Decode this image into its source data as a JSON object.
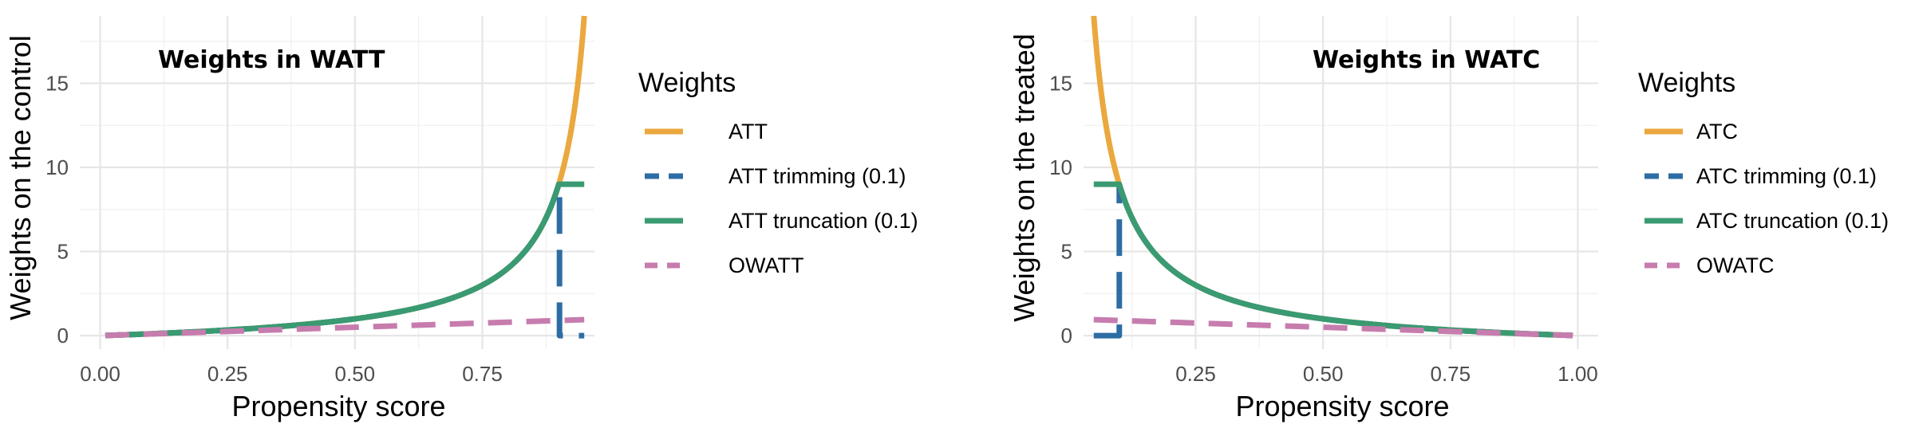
{
  "chart_data": [
    {
      "type": "line",
      "title": "Weights in WATT",
      "xlabel": "Propensity score",
      "ylabel": "Weights on the control",
      "xlim": [
        -0.04,
        0.97
      ],
      "ylim": [
        -0.8,
        19
      ],
      "x_ticks": [
        0.0,
        0.25,
        0.5,
        0.75
      ],
      "x_tick_labels": [
        "0.00",
        "0.25",
        "0.50",
        "0.75"
      ],
      "y_ticks": [
        0,
        5,
        10,
        15
      ],
      "y_tick_labels": [
        "0",
        "5",
        "10",
        "15"
      ],
      "grid": true,
      "legend": {
        "title": "Weights",
        "entries": [
          "ATT",
          "ATT trimming (0.1)",
          "ATT truncation (0.1)",
          "OWATT"
        ]
      },
      "series": [
        {
          "name": "ATT",
          "color": "#EBA83E",
          "dash": "solid",
          "formula": "e/(1-e)",
          "x_range": [
            0.01,
            0.95
          ]
        },
        {
          "name": "ATT trimming (0.1)",
          "color": "#2E6DA4",
          "dash": "long-dash",
          "formula": "e/(1-e) for e<=0.9, else 0",
          "x_range": [
            0.01,
            0.95
          ]
        },
        {
          "name": "ATT truncation (0.1)",
          "color": "#3A9A72",
          "dash": "solid",
          "formula": "min(e/(1-e), 9)",
          "x_range": [
            0.01,
            0.95
          ]
        },
        {
          "name": "OWATT",
          "color": "#C77CAE",
          "dash": "dashed",
          "formula": "e",
          "x_range": [
            0.01,
            0.95
          ]
        }
      ]
    },
    {
      "type": "line",
      "title": "Weights in WATC",
      "xlabel": "Propensity score",
      "ylabel": "Weights on the treated",
      "xlim": [
        0.03,
        1.04
      ],
      "ylim": [
        -0.8,
        19
      ],
      "x_ticks": [
        0.25,
        0.5,
        0.75,
        1.0
      ],
      "x_tick_labels": [
        "0.25",
        "0.50",
        "0.75",
        "1.00"
      ],
      "y_ticks": [
        0,
        5,
        10,
        15
      ],
      "y_tick_labels": [
        "0",
        "5",
        "10",
        "15"
      ],
      "grid": true,
      "legend": {
        "title": "Weights",
        "entries": [
          "ATC",
          "ATC trimming (0.1)",
          "ATC truncation (0.1)",
          "OWATC"
        ]
      },
      "series": [
        {
          "name": "ATC",
          "color": "#EBA83E",
          "dash": "solid",
          "formula": "(1-e)/e",
          "x_range": [
            0.05,
            0.99
          ]
        },
        {
          "name": "ATC trimming (0.1)",
          "color": "#2E6DA4",
          "dash": "long-dash",
          "formula": "(1-e)/e for e>=0.1, else 0",
          "x_range": [
            0.05,
            0.99
          ]
        },
        {
          "name": "ATC truncation (0.1)",
          "color": "#3A9A72",
          "dash": "solid",
          "formula": "min((1-e)/e, 9)",
          "x_range": [
            0.05,
            0.99
          ]
        },
        {
          "name": "OWATC",
          "color": "#C77CAE",
          "dash": "dashed",
          "formula": "1-e",
          "x_range": [
            0.05,
            0.99
          ]
        }
      ]
    }
  ]
}
